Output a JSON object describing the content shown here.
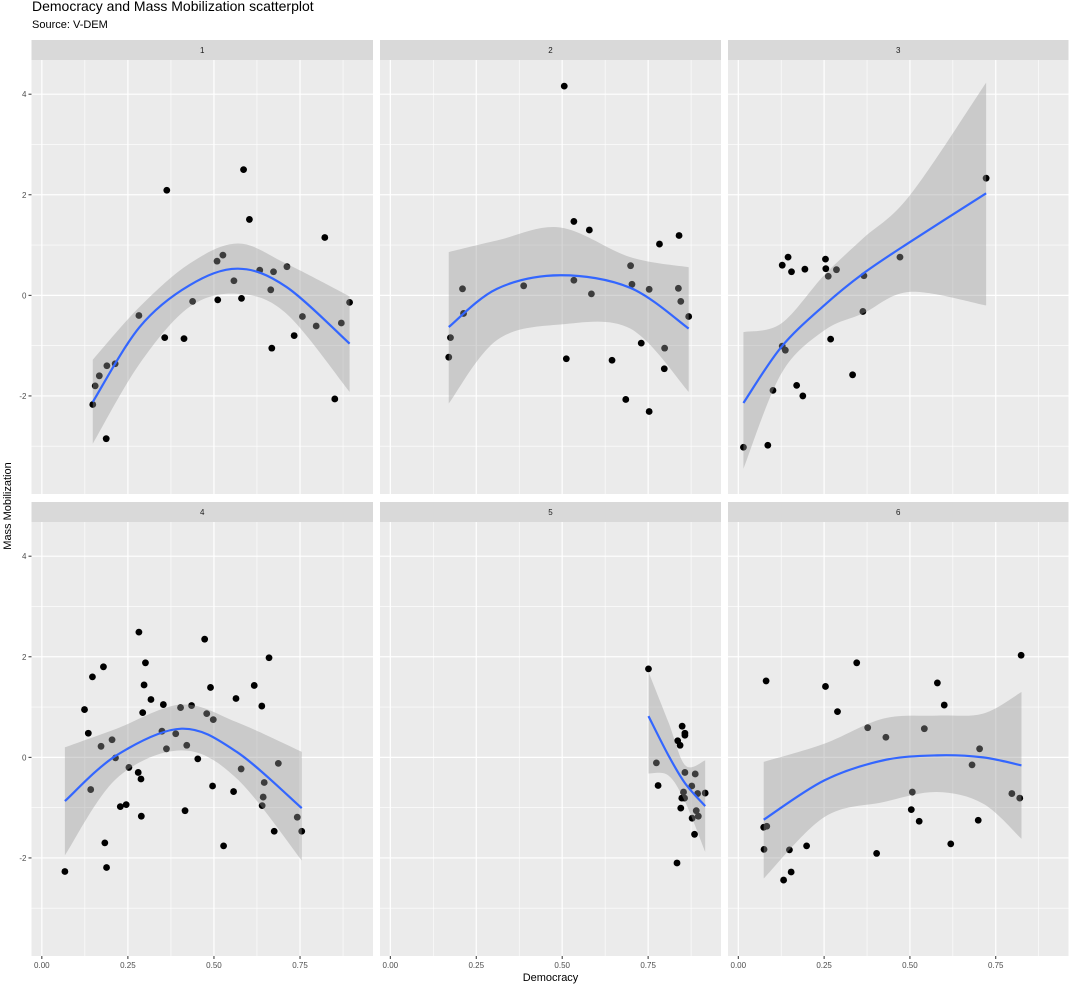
{
  "chart_data": {
    "type": "scatter",
    "title": "Democracy and Mass Mobilization scatterplot",
    "subtitle": "Source: V-DEM",
    "xlabel": "Democracy",
    "ylabel": "Mass Mobilization",
    "xlim": [
      -0.03,
      0.962
    ],
    "ylim": [
      -3.95,
      4.68
    ],
    "x_ticks": {
      "values": [
        0,
        0.25,
        0.5,
        0.75
      ],
      "labels": [
        "0.00",
        "0.25",
        "0.50",
        "0.75"
      ]
    },
    "y_ticks": {
      "values": [
        -2,
        0,
        2,
        4
      ],
      "labels": [
        "-2",
        "0",
        "2",
        "4"
      ]
    },
    "grid": true,
    "colors": {
      "panel": "#EBEBEB",
      "strip": "#D9D9D9",
      "grid": "#FFFFFF",
      "points": "#000000",
      "smooth_line": "#3366FF",
      "ribbon": "#999999"
    },
    "facets": [
      {
        "label": "1",
        "points": [
          [
            0.148,
            -2.17
          ],
          [
            0.155,
            -1.8
          ],
          [
            0.167,
            -1.6
          ],
          [
            0.187,
            -2.85
          ],
          [
            0.189,
            -1.4
          ],
          [
            0.213,
            -1.36
          ],
          [
            0.282,
            -0.4
          ],
          [
            0.357,
            -0.84
          ],
          [
            0.363,
            2.09
          ],
          [
            0.413,
            -0.86
          ],
          [
            0.438,
            -0.12
          ],
          [
            0.509,
            0.68
          ],
          [
            0.511,
            -0.09
          ],
          [
            0.526,
            0.8
          ],
          [
            0.558,
            0.29
          ],
          [
            0.58,
            -0.06
          ],
          [
            0.586,
            2.5
          ],
          [
            0.603,
            1.51
          ],
          [
            0.633,
            0.5
          ],
          [
            0.665,
            0.11
          ],
          [
            0.668,
            -1.05
          ],
          [
            0.673,
            0.47
          ],
          [
            0.712,
            0.57
          ],
          [
            0.733,
            -0.8
          ],
          [
            0.757,
            -0.42
          ],
          [
            0.797,
            -0.61
          ],
          [
            0.822,
            1.15
          ],
          [
            0.851,
            -2.06
          ],
          [
            0.87,
            -0.55
          ],
          [
            0.894,
            -0.14
          ]
        ],
        "smooth": {
          "x": [
            0.148,
            0.284,
            0.429,
            0.57,
            0.71,
            0.894
          ],
          "fit": [
            -2.12,
            -0.63,
            0.2,
            0.53,
            0.17,
            -0.96
          ],
          "lower": [
            -2.95,
            -1.36,
            -0.23,
            0.03,
            -0.36,
            -1.92
          ],
          "upper": [
            -1.28,
            -0.23,
            0.63,
            1.03,
            0.63,
            -0.02
          ]
        }
      },
      {
        "label": "2",
        "points": [
          [
            0.17,
            -1.23
          ],
          [
            0.175,
            -0.84
          ],
          [
            0.21,
            0.13
          ],
          [
            0.213,
            -0.36
          ],
          [
            0.388,
            0.19
          ],
          [
            0.506,
            4.16
          ],
          [
            0.512,
            -1.26
          ],
          [
            0.534,
            1.47
          ],
          [
            0.534,
            0.3
          ],
          [
            0.579,
            1.3
          ],
          [
            0.585,
            0.03
          ],
          [
            0.645,
            -1.29
          ],
          [
            0.685,
            -2.07
          ],
          [
            0.699,
            0.59
          ],
          [
            0.703,
            0.22
          ],
          [
            0.73,
            -0.95
          ],
          [
            0.753,
            0.12
          ],
          [
            0.753,
            -2.31
          ],
          [
            0.783,
            1.02
          ],
          [
            0.798,
            -1.05
          ],
          [
            0.797,
            -1.46
          ],
          [
            0.838,
            0.14
          ],
          [
            0.84,
            1.19
          ],
          [
            0.845,
            -0.12
          ],
          [
            0.868,
            -0.42
          ]
        ],
        "smooth": {
          "x": [
            0.17,
            0.31,
            0.494,
            0.698,
            0.868
          ],
          "fit": [
            -0.63,
            0.13,
            0.4,
            0.15,
            -0.66
          ],
          "lower": [
            -2.15,
            -0.89,
            -0.58,
            -0.66,
            -1.92
          ],
          "upper": [
            0.86,
            1.09,
            1.35,
            0.76,
            0.56
          ]
        }
      },
      {
        "label": "3",
        "points": [
          [
            0.015,
            -3.02
          ],
          [
            0.086,
            -2.98
          ],
          [
            0.101,
            -1.89
          ],
          [
            0.128,
            -1.01
          ],
          [
            0.137,
            -1.09
          ],
          [
            0.128,
            0.6
          ],
          [
            0.145,
            0.76
          ],
          [
            0.155,
            0.47
          ],
          [
            0.17,
            -1.79
          ],
          [
            0.188,
            -2.0
          ],
          [
            0.194,
            0.52
          ],
          [
            0.254,
            0.72
          ],
          [
            0.255,
            0.53
          ],
          [
            0.262,
            0.38
          ],
          [
            0.269,
            -0.87
          ],
          [
            0.286,
            0.51
          ],
          [
            0.333,
            -1.58
          ],
          [
            0.363,
            -0.32
          ],
          [
            0.366,
            0.39
          ],
          [
            0.471,
            0.76
          ],
          [
            0.722,
            2.33
          ]
        ],
        "smooth": {
          "x": [
            0.015,
            0.125,
            0.25,
            0.363,
            0.5,
            0.722
          ],
          "fit": [
            -2.14,
            -1.03,
            -0.2,
            0.43,
            1.06,
            2.03
          ],
          "lower": [
            -3.45,
            -1.56,
            -0.7,
            -0.36,
            0.07,
            -0.2
          ],
          "upper": [
            -0.73,
            -0.56,
            0.4,
            1.13,
            1.99,
            4.23
          ]
        }
      },
      {
        "label": "4",
        "points": [
          [
            0.067,
            -2.27
          ],
          [
            0.124,
            0.95
          ],
          [
            0.135,
            0.48
          ],
          [
            0.142,
            -0.64
          ],
          [
            0.147,
            1.6
          ],
          [
            0.172,
            0.22
          ],
          [
            0.179,
            1.8
          ],
          [
            0.183,
            -1.7
          ],
          [
            0.188,
            -2.19
          ],
          [
            0.204,
            0.35
          ],
          [
            0.214,
            -0.01
          ],
          [
            0.228,
            -0.98
          ],
          [
            0.245,
            -0.94
          ],
          [
            0.253,
            -0.2
          ],
          [
            0.28,
            -0.3
          ],
          [
            0.282,
            2.49
          ],
          [
            0.288,
            -0.43
          ],
          [
            0.289,
            -1.17
          ],
          [
            0.293,
            0.89
          ],
          [
            0.297,
            1.44
          ],
          [
            0.301,
            1.88
          ],
          [
            0.317,
            1.15
          ],
          [
            0.349,
            0.52
          ],
          [
            0.353,
            1.05
          ],
          [
            0.362,
            0.17
          ],
          [
            0.389,
            0.47
          ],
          [
            0.403,
            0.99
          ],
          [
            0.416,
            -1.06
          ],
          [
            0.421,
            0.24
          ],
          [
            0.435,
            1.03
          ],
          [
            0.453,
            -0.03
          ],
          [
            0.473,
            2.35
          ],
          [
            0.479,
            0.87
          ],
          [
            0.49,
            1.39
          ],
          [
            0.496,
            -0.57
          ],
          [
            0.498,
            0.75
          ],
          [
            0.528,
            -1.76
          ],
          [
            0.557,
            -0.68
          ],
          [
            0.564,
            1.17
          ],
          [
            0.579,
            -0.23
          ],
          [
            0.617,
            1.43
          ],
          [
            0.639,
            1.02
          ],
          [
            0.64,
            -0.96
          ],
          [
            0.643,
            -0.79
          ],
          [
            0.646,
            -0.5
          ],
          [
            0.66,
            1.98
          ],
          [
            0.675,
            -1.47
          ],
          [
            0.687,
            -0.12
          ],
          [
            0.742,
            -1.19
          ],
          [
            0.755,
            -1.47
          ]
        ],
        "smooth": {
          "x": [
            0.067,
            0.217,
            0.406,
            0.566,
            0.755
          ],
          "fit": [
            -0.87,
            0.04,
            0.57,
            0.11,
            -1.01
          ],
          "lower": [
            -1.95,
            -0.42,
            0.14,
            -0.42,
            -2.05
          ],
          "upper": [
            0.2,
            0.57,
            1.05,
            0.7,
            0.11
          ]
        }
      },
      {
        "label": "5",
        "points": [
          [
            0.751,
            1.76
          ],
          [
            0.774,
            -0.11
          ],
          [
            0.779,
            -0.56
          ],
          [
            0.834,
            -2.1
          ],
          [
            0.845,
            -1.01
          ],
          [
            0.849,
            0.62
          ],
          [
            0.836,
            0.33
          ],
          [
            0.843,
            0.24
          ],
          [
            0.857,
            0.48
          ],
          [
            0.857,
            0.44
          ],
          [
            0.857,
            -0.3
          ],
          [
            0.853,
            -0.69
          ],
          [
            0.848,
            -0.81
          ],
          [
            0.856,
            -0.81
          ],
          [
            0.877,
            -0.57
          ],
          [
            0.887,
            -0.33
          ],
          [
            0.894,
            -0.72
          ],
          [
            0.89,
            -1.06
          ],
          [
            0.878,
            -1.21
          ],
          [
            0.896,
            -1.17
          ],
          [
            0.885,
            -1.53
          ],
          [
            0.916,
            -0.71
          ]
        ],
        "smooth": {
          "x": [
            0.751,
            0.809,
            0.858,
            0.916
          ],
          "fit": [
            0.82,
            0.04,
            -0.52,
            -0.97
          ],
          "lower": [
            -0.32,
            -0.36,
            -0.89,
            -1.88
          ],
          "upper": [
            1.7,
            0.7,
            -0.16,
            -0.06
          ]
        }
      },
      {
        "label": "6",
        "points": [
          [
            0.081,
            1.52
          ],
          [
            0.074,
            -1.39
          ],
          [
            0.083,
            -1.37
          ],
          [
            0.075,
            -1.83
          ],
          [
            0.132,
            -2.44
          ],
          [
            0.149,
            -1.84
          ],
          [
            0.154,
            -2.28
          ],
          [
            0.199,
            -1.76
          ],
          [
            0.254,
            1.41
          ],
          [
            0.289,
            0.91
          ],
          [
            0.345,
            1.88
          ],
          [
            0.377,
            0.59
          ],
          [
            0.403,
            -1.91
          ],
          [
            0.43,
            0.4
          ],
          [
            0.504,
            -1.04
          ],
          [
            0.507,
            -0.69
          ],
          [
            0.527,
            -1.27
          ],
          [
            0.542,
            0.57
          ],
          [
            0.58,
            1.48
          ],
          [
            0.6,
            1.04
          ],
          [
            0.619,
            -1.72
          ],
          [
            0.681,
            -0.15
          ],
          [
            0.699,
            -1.25
          ],
          [
            0.703,
            0.17
          ],
          [
            0.797,
            -0.72
          ],
          [
            0.82,
            -0.81
          ],
          [
            0.824,
            2.03
          ]
        ],
        "smooth": {
          "x": [
            0.074,
            0.25,
            0.422,
            0.578,
            0.713,
            0.825
          ],
          "fit": [
            -1.24,
            -0.46,
            -0.06,
            0.04,
            0.0,
            -0.16
          ],
          "lower": [
            -2.41,
            -1.19,
            -0.89,
            -0.69,
            -0.92,
            -1.62
          ],
          "upper": [
            -0.09,
            0.27,
            0.77,
            0.83,
            0.87,
            1.3
          ]
        }
      }
    ]
  }
}
